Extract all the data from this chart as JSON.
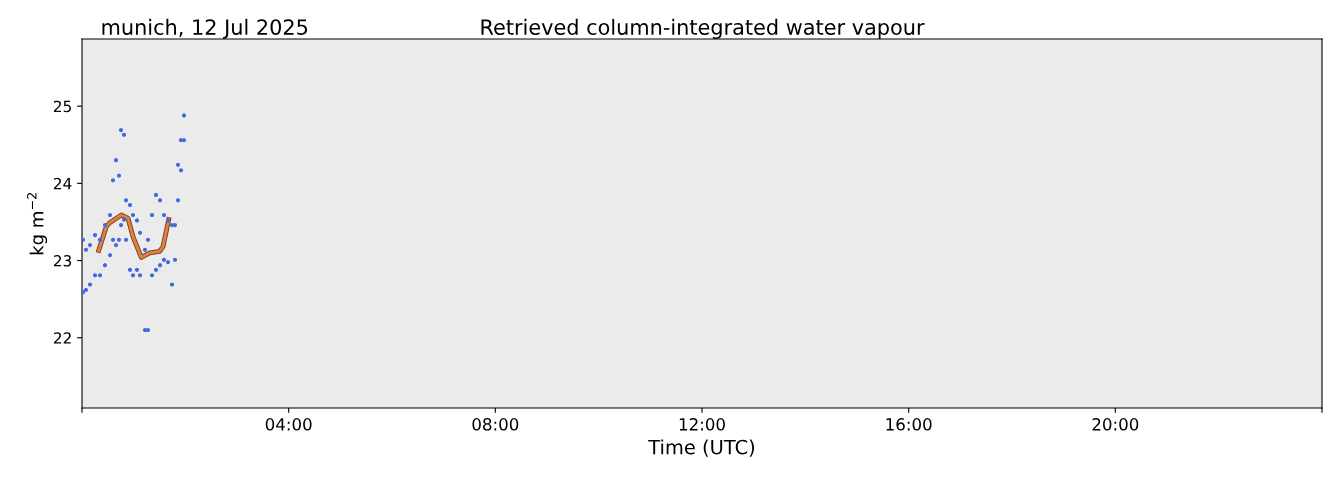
{
  "chart_data": {
    "type": "scatter",
    "title": "Retrieved column-integrated water vapour",
    "subtitle": "munich, 12 Jul 2025",
    "xlabel": "Time (UTC)",
    "ylabel": "kg m$^{−2}$",
    "xlim": [
      0,
      24
    ],
    "xticks": [
      {
        "value": 0,
        "label": null
      },
      {
        "value": 4,
        "label": "04:00"
      },
      {
        "value": 8,
        "label": "08:00"
      },
      {
        "value": 12,
        "label": "12:00"
      },
      {
        "value": 16,
        "label": "16:00"
      },
      {
        "value": 20,
        "label": "20:00"
      },
      {
        "value": 24,
        "label": null
      }
    ],
    "ylim": [
      21.09,
      25.87
    ],
    "yticks": [
      22,
      23,
      24,
      25
    ],
    "grid": false,
    "marker": "circle",
    "series": [
      {
        "color": "#4169e1",
        "x": [
          0.019,
          0.019,
          0.077,
          0.077,
          0.155,
          0.155,
          0.252,
          0.252,
          0.348,
          0.348,
          0.445,
          0.445,
          0.542,
          0.542,
          0.6,
          0.6,
          0.658,
          0.658,
          0.716,
          0.716,
          0.755,
          0.755,
          0.813,
          0.813,
          0.852,
          0.852,
          0.929,
          0.929,
          0.987,
          0.987,
          1.064,
          1.064,
          1.123,
          1.123,
          1.219,
          1.219,
          1.277,
          1.277,
          1.355,
          1.355,
          1.432,
          1.432,
          1.51,
          1.51,
          1.587,
          1.587,
          1.664,
          1.664,
          1.742,
          1.742,
          1.8,
          1.8,
          1.858,
          1.858,
          1.916,
          1.916,
          1.974,
          1.974
        ],
        "values": [
          23.27,
          22.59,
          23.14,
          22.62,
          23.2,
          22.69,
          23.33,
          22.81,
          23.27,
          22.81,
          23.46,
          22.94,
          23.59,
          23.07,
          24.04,
          23.27,
          24.3,
          23.2,
          24.1,
          23.27,
          24.69,
          23.46,
          24.63,
          23.53,
          23.78,
          23.27,
          23.72,
          22.88,
          23.59,
          22.81,
          23.52,
          22.88,
          23.36,
          22.81,
          23.14,
          22.1,
          23.27,
          22.1,
          23.59,
          22.81,
          23.85,
          22.88,
          23.78,
          22.94,
          23.59,
          23.01,
          23.52,
          22.98,
          23.46,
          22.69,
          23.46,
          23.01,
          24.24,
          23.78,
          24.56,
          24.17,
          24.88,
          24.56
        ]
      },
      {
        "type": "line",
        "color": "#d9834a",
        "marker": "none",
        "x": [
          0.323,
          0.471,
          0.536,
          0.761,
          0.89,
          0.987,
          1.148,
          1.31,
          1.503,
          1.568,
          1.678
        ],
        "values": [
          23.13,
          23.44,
          23.49,
          23.59,
          23.55,
          23.31,
          23.04,
          23.1,
          23.12,
          23.18,
          23.53
        ]
      }
    ]
  }
}
